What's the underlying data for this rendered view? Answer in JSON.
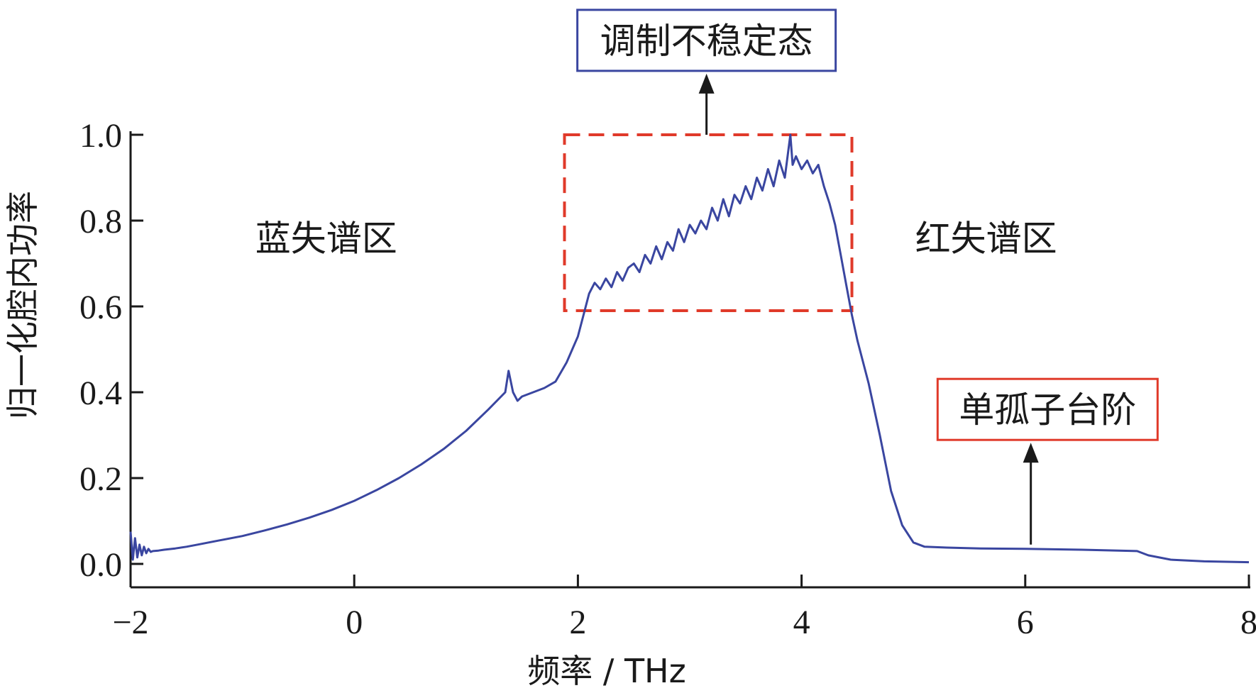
{
  "chart_data": {
    "type": "line",
    "xlabel": "频率 / THz",
    "ylabel": "归一化腔内功率",
    "xlim": [
      -2,
      8
    ],
    "ylim": [
      0,
      1.0
    ],
    "x_ticks": [
      "−2",
      "0",
      "2",
      "4",
      "6",
      "8"
    ],
    "x_tick_values": [
      -2,
      0,
      2,
      4,
      6,
      8
    ],
    "y_ticks": [
      "0.0",
      "0.2",
      "0.4",
      "0.6",
      "0.8",
      "1.0"
    ],
    "y_tick_values": [
      0,
      0.2,
      0.4,
      0.6,
      0.8,
      1.0
    ],
    "grid": false,
    "line_color": "#3a46a0",
    "series": [
      {
        "x": [
          -2.0,
          -1.98,
          -1.96,
          -1.94,
          -1.92,
          -1.9,
          -1.88,
          -1.86,
          -1.84,
          -1.82,
          -1.8,
          -1.75,
          -1.7,
          -1.6,
          -1.5,
          -1.4,
          -1.2,
          -1.0,
          -0.8,
          -0.6,
          -0.4,
          -0.2,
          0.0,
          0.2,
          0.4,
          0.6,
          0.8,
          1.0,
          1.2,
          1.35,
          1.38,
          1.42,
          1.46,
          1.5,
          1.6,
          1.7,
          1.8,
          1.9,
          1.95,
          2.0,
          2.05,
          2.1,
          2.15,
          2.2,
          2.25,
          2.3,
          2.35,
          2.4,
          2.45,
          2.5,
          2.55,
          2.6,
          2.65,
          2.7,
          2.75,
          2.8,
          2.85,
          2.9,
          2.95,
          3.0,
          3.05,
          3.1,
          3.15,
          3.2,
          3.25,
          3.3,
          3.35,
          3.4,
          3.45,
          3.5,
          3.55,
          3.6,
          3.65,
          3.7,
          3.75,
          3.8,
          3.85,
          3.9,
          3.92,
          3.95,
          4.0,
          4.05,
          4.1,
          4.15,
          4.2,
          4.25,
          4.3,
          4.35,
          4.4,
          4.45,
          4.5,
          4.6,
          4.7,
          4.8,
          4.9,
          5.0,
          5.1,
          5.3,
          5.6,
          6.0,
          6.5,
          7.0,
          7.1,
          7.3,
          7.6,
          8.0
        ],
        "y": [
          0.075,
          0.01,
          0.06,
          0.015,
          0.045,
          0.02,
          0.04,
          0.025,
          0.035,
          0.028,
          0.03,
          0.031,
          0.033,
          0.036,
          0.04,
          0.045,
          0.055,
          0.065,
          0.078,
          0.092,
          0.108,
          0.126,
          0.147,
          0.172,
          0.2,
          0.232,
          0.268,
          0.31,
          0.36,
          0.4,
          0.45,
          0.4,
          0.38,
          0.39,
          0.4,
          0.41,
          0.425,
          0.47,
          0.5,
          0.53,
          0.58,
          0.63,
          0.655,
          0.64,
          0.665,
          0.645,
          0.68,
          0.66,
          0.69,
          0.7,
          0.68,
          0.72,
          0.7,
          0.74,
          0.71,
          0.75,
          0.73,
          0.78,
          0.75,
          0.79,
          0.77,
          0.8,
          0.78,
          0.83,
          0.8,
          0.85,
          0.81,
          0.86,
          0.84,
          0.88,
          0.85,
          0.9,
          0.87,
          0.92,
          0.88,
          0.94,
          0.9,
          1.0,
          0.93,
          0.95,
          0.92,
          0.94,
          0.91,
          0.93,
          0.88,
          0.84,
          0.79,
          0.72,
          0.65,
          0.58,
          0.52,
          0.42,
          0.3,
          0.17,
          0.09,
          0.05,
          0.04,
          0.038,
          0.036,
          0.035,
          0.033,
          0.03,
          0.02,
          0.01,
          0.006,
          0.004
        ]
      }
    ],
    "annotations": [
      {
        "text": "蓝失谱区",
        "x": -0.25,
        "y": 0.73,
        "kind": "label"
      },
      {
        "text": "红失谱区",
        "x": 5.65,
        "y": 0.73,
        "kind": "label"
      },
      {
        "text": "调制不稳定态",
        "x": 3.15,
        "y": 1.22,
        "kind": "box",
        "border_color": "#3a46a0",
        "arrow_to": [
          3.15,
          1.0
        ]
      },
      {
        "text": "单孤子台阶",
        "x": 6.2,
        "y": 0.36,
        "kind": "box",
        "border_color": "#e03a2a",
        "arrow_to": [
          6.05,
          0.045
        ]
      }
    ],
    "highlight_region": {
      "x": [
        1.88,
        4.45
      ],
      "y": [
        0.59,
        1.0
      ],
      "color": "#e03a2a",
      "style": "dashed"
    }
  }
}
